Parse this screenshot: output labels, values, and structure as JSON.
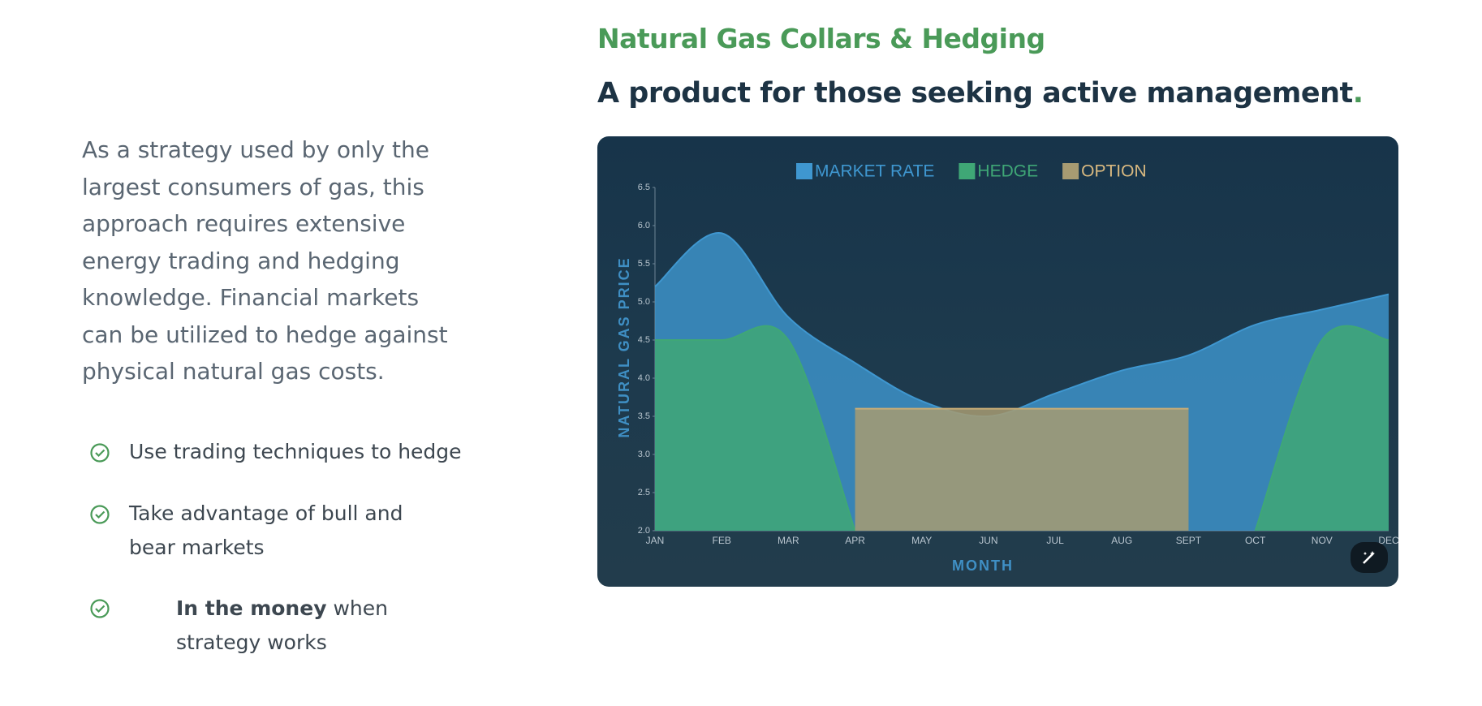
{
  "intro": {
    "paragraph": "As a strategy used by only the largest consumers of gas, this approach requires extensive energy trading and hedging knowledge. Financial markets can be utilized to hedge against physical natural gas costs.",
    "list": [
      "Use trading techniques to hedge",
      "Take advantage of bull and bear markets",
      {
        "bold": "In the money",
        "rest": " when strategy works"
      }
    ]
  },
  "header": {
    "title": "Natural Gas Collars & Hedging",
    "subtitle": "A product for those seeking active management",
    "subtitle_dot": "."
  },
  "chart_data": {
    "type": "area",
    "x_label": "MONTH",
    "y_label": "NATURAL GAS PRICE",
    "categories": [
      "JAN",
      "FEB",
      "MAR",
      "APR",
      "MAY",
      "JUN",
      "JUL",
      "AUG",
      "SEPT",
      "OCT",
      "NOV",
      "DEC"
    ],
    "series": [
      {
        "name": "MARKET RATE",
        "color": "#3f97d0",
        "values": [
          5.2,
          5.9,
          4.8,
          4.2,
          3.7,
          3.5,
          3.8,
          4.1,
          4.3,
          4.7,
          4.9,
          5.1
        ]
      },
      {
        "name": "HEDGE",
        "color": "#3fa776",
        "values": [
          4.5,
          4.5,
          4.5,
          2,
          null,
          null,
          null,
          null,
          null,
          2,
          4.5,
          4.5
        ]
      },
      {
        "name": "OPTION",
        "color": "#a79b72",
        "values": [
          null,
          null,
          null,
          3.6,
          3.6,
          3.6,
          3.6,
          3.6,
          3.6,
          null,
          null,
          null
        ]
      }
    ],
    "ylim": [
      2,
      6.5
    ],
    "yticks": [
      {
        "value": 2,
        "label": "2.0"
      },
      2.5,
      {
        "value": 3,
        "label": "3.0"
      },
      3.5,
      {
        "value": 4,
        "label": "4.0"
      },
      4.5,
      {
        "value": 5,
        "label": "5.0"
      },
      5.5,
      {
        "value": 6,
        "label": "6.0"
      },
      6.5
    ],
    "grid": false,
    "legend": "top"
  }
}
